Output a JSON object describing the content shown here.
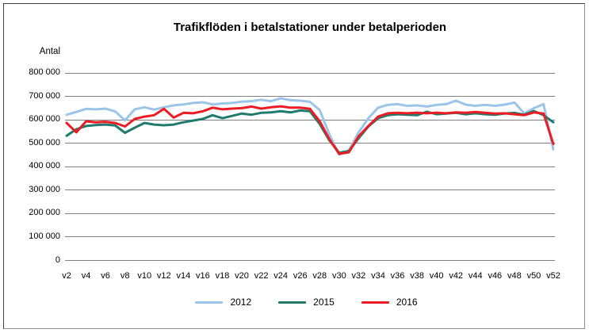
{
  "chart_data": {
    "type": "line",
    "title": "Trafikflöden i betalstationer under betalperioden",
    "ylabel": "Antal",
    "xlabel": "",
    "grid": "horizontal",
    "legend_position": "bottom",
    "ylim": [
      0,
      800000
    ],
    "y_ticks": [
      {
        "value": 0,
        "label": "0"
      },
      {
        "value": 100000,
        "label": "100 000"
      },
      {
        "value": 200000,
        "label": "200 000"
      },
      {
        "value": 300000,
        "label": "300 000"
      },
      {
        "value": 400000,
        "label": "400 000"
      },
      {
        "value": 500000,
        "label": "500 000"
      },
      {
        "value": 600000,
        "label": "600 000"
      },
      {
        "value": 700000,
        "label": "700 000"
      },
      {
        "value": 800000,
        "label": "800 000"
      }
    ],
    "x_tick_labels": [
      "v2",
      "v4",
      "v6",
      "v8",
      "v10",
      "v12",
      "v14",
      "v16",
      "v18",
      "v20",
      "v22",
      "v24",
      "v26",
      "v28",
      "v30",
      "v32",
      "v34",
      "v36",
      "v38",
      "v40",
      "v42",
      "v44",
      "v46",
      "v48",
      "v50",
      "v52"
    ],
    "weeks": [
      2,
      3,
      4,
      5,
      6,
      7,
      8,
      9,
      10,
      11,
      12,
      13,
      14,
      15,
      16,
      17,
      18,
      19,
      20,
      21,
      22,
      23,
      24,
      25,
      26,
      27,
      28,
      29,
      30,
      31,
      32,
      33,
      34,
      35,
      36,
      37,
      38,
      39,
      40,
      41,
      42,
      43,
      44,
      45,
      46,
      47,
      48,
      49,
      50,
      51,
      52
    ],
    "series": [
      {
        "name": "2012",
        "color": "#9CC4E8",
        "values": [
          620000,
          632000,
          645000,
          643000,
          646000,
          634000,
          596000,
          643000,
          652000,
          642000,
          652000,
          660000,
          664000,
          670000,
          673000,
          664000,
          668000,
          670000,
          676000,
          678000,
          684000,
          678000,
          690000,
          682000,
          680000,
          675000,
          640000,
          535000,
          450000,
          468000,
          545000,
          605000,
          650000,
          662000,
          665000,
          658000,
          660000,
          655000,
          662000,
          665000,
          680000,
          663000,
          658000,
          662000,
          658000,
          663000,
          672000,
          626000,
          648000,
          665000,
          472000
        ]
      },
      {
        "name": "2015",
        "color": "#217B6D",
        "values": [
          530000,
          558000,
          572000,
          576000,
          578000,
          574000,
          543000,
          565000,
          585000,
          578000,
          575000,
          578000,
          588000,
          595000,
          602000,
          618000,
          605000,
          615000,
          625000,
          620000,
          628000,
          630000,
          635000,
          630000,
          638000,
          635000,
          580000,
          510000,
          458000,
          465000,
          520000,
          570000,
          605000,
          618000,
          622000,
          620000,
          618000,
          633000,
          622000,
          625000,
          628000,
          622000,
          626000,
          622000,
          620000,
          625000,
          628000,
          620000,
          636000,
          618000,
          588000
        ]
      },
      {
        "name": "2016",
        "color": "#ED1C24",
        "values": [
          585000,
          545000,
          592000,
          588000,
          590000,
          585000,
          570000,
          602000,
          612000,
          618000,
          645000,
          608000,
          628000,
          626000,
          635000,
          650000,
          643000,
          646000,
          648000,
          655000,
          646000,
          652000,
          656000,
          650000,
          650000,
          645000,
          592000,
          515000,
          453000,
          460000,
          528000,
          572000,
          612000,
          626000,
          628000,
          626000,
          629000,
          626000,
          629000,
          626000,
          630000,
          628000,
          632000,
          628000,
          625000,
          626000,
          622000,
          618000,
          630000,
          625000,
          495000
        ]
      }
    ],
    "gridline_color": "#808080"
  }
}
